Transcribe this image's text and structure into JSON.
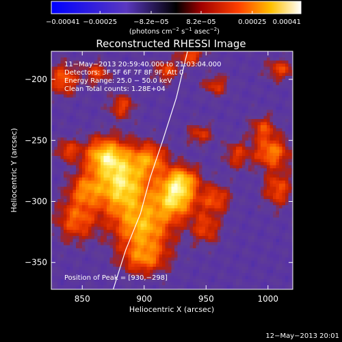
{
  "colorbar": {
    "ticks": [
      {
        "value": -0.00041,
        "label": "−0.00041"
      },
      {
        "value": -0.00025,
        "label": "−0.00025"
      },
      {
        "value": -8.2e-05,
        "label": "−8.2e−05"
      },
      {
        "value": 8.2e-05,
        "label": "8.2e−05"
      },
      {
        "value": 0.00025,
        "label": "0.00025"
      },
      {
        "value": 0.00041,
        "label": "0.00041"
      }
    ],
    "range": [
      -0.00041,
      0.00041
    ],
    "units": {
      "prefix": "(photons cm",
      "exp1": "−2",
      "mid1": " s",
      "exp2": "−1",
      "mid2": " asec",
      "exp3": "−2",
      "suffix": ")"
    }
  },
  "chart_data": {
    "type": "heatmap",
    "title": "Reconstructed RHESSI Image",
    "xlabel": "Heliocentric X (arcsec)",
    "ylabel": "Heliocentric Y (arcsec)",
    "xlim": [
      825,
      1020
    ],
    "ylim": [
      -372,
      -177
    ],
    "xticks": [
      850,
      900,
      950,
      1000
    ],
    "yticks": [
      -200,
      -250,
      -300,
      -350
    ],
    "annotations": [
      "11−May−2013 20:59:40.000 to 21:03:04.000",
      "Detectors: 3F 5F 6F 7F 8F 9F, Att 0",
      "Energy Range: 25.0 − 50.0 keV",
      "Clean    Total counts: 1.28E+04"
    ],
    "peak_label": "Position of Peak = [930,−298]",
    "peak": [
      930,
      -298
    ],
    "limb_curve": [
      [
        875,
        -372
      ],
      [
        885,
        -340
      ],
      [
        897,
        -310
      ],
      [
        905,
        -280
      ],
      [
        915,
        -250
      ],
      [
        926,
        -215
      ],
      [
        935,
        -177
      ]
    ],
    "blobs": [
      {
        "x": 882,
        "y": -286,
        "sx": 16,
        "sy": 18,
        "a": 1.0
      },
      {
        "x": 868,
        "y": -262,
        "sx": 12,
        "sy": 10,
        "a": 0.75
      },
      {
        "x": 905,
        "y": -265,
        "sx": 10,
        "sy": 9,
        "a": 0.55
      },
      {
        "x": 925,
        "y": -298,
        "sx": 12,
        "sy": 11,
        "a": 0.9
      },
      {
        "x": 930,
        "y": -282,
        "sx": 10,
        "sy": 8,
        "a": 0.7
      },
      {
        "x": 900,
        "y": -322,
        "sx": 16,
        "sy": 14,
        "a": 0.75
      },
      {
        "x": 900,
        "y": -347,
        "sx": 13,
        "sy": 9,
        "a": 0.55
      },
      {
        "x": 845,
        "y": -315,
        "sx": 11,
        "sy": 12,
        "a": 0.55
      },
      {
        "x": 852,
        "y": -290,
        "sx": 9,
        "sy": 9,
        "a": 0.5
      },
      {
        "x": 958,
        "y": -298,
        "sx": 8,
        "sy": 8,
        "a": 0.5
      },
      {
        "x": 950,
        "y": -322,
        "sx": 8,
        "sy": 9,
        "a": 0.45
      },
      {
        "x": 1003,
        "y": -260,
        "sx": 10,
        "sy": 9,
        "a": 0.65
      },
      {
        "x": 1008,
        "y": -290,
        "sx": 8,
        "sy": 10,
        "a": 0.5
      },
      {
        "x": 996,
        "y": -240,
        "sx": 7,
        "sy": 7,
        "a": 0.45
      },
      {
        "x": 975,
        "y": -262,
        "sx": 7,
        "sy": 8,
        "a": 0.4
      },
      {
        "x": 835,
        "y": -200,
        "sx": 8,
        "sy": 9,
        "a": 0.55
      },
      {
        "x": 862,
        "y": -195,
        "sx": 7,
        "sy": 6,
        "a": 0.45
      },
      {
        "x": 882,
        "y": -222,
        "sx": 7,
        "sy": 7,
        "a": 0.45
      },
      {
        "x": 918,
        "y": -193,
        "sx": 7,
        "sy": 6,
        "a": 0.45
      },
      {
        "x": 938,
        "y": -180,
        "sx": 7,
        "sy": 6,
        "a": 0.5
      },
      {
        "x": 958,
        "y": -205,
        "sx": 7,
        "sy": 6,
        "a": 0.4
      },
      {
        "x": 1010,
        "y": -192,
        "sx": 8,
        "sy": 6,
        "a": 0.45
      },
      {
        "x": 945,
        "y": -245,
        "sx": 7,
        "sy": 6,
        "a": 0.4
      },
      {
        "x": 838,
        "y": -258,
        "sx": 6,
        "sy": 6,
        "a": 0.45
      }
    ]
  },
  "footer": {
    "timestamp": "12−May−2013 20:01"
  }
}
